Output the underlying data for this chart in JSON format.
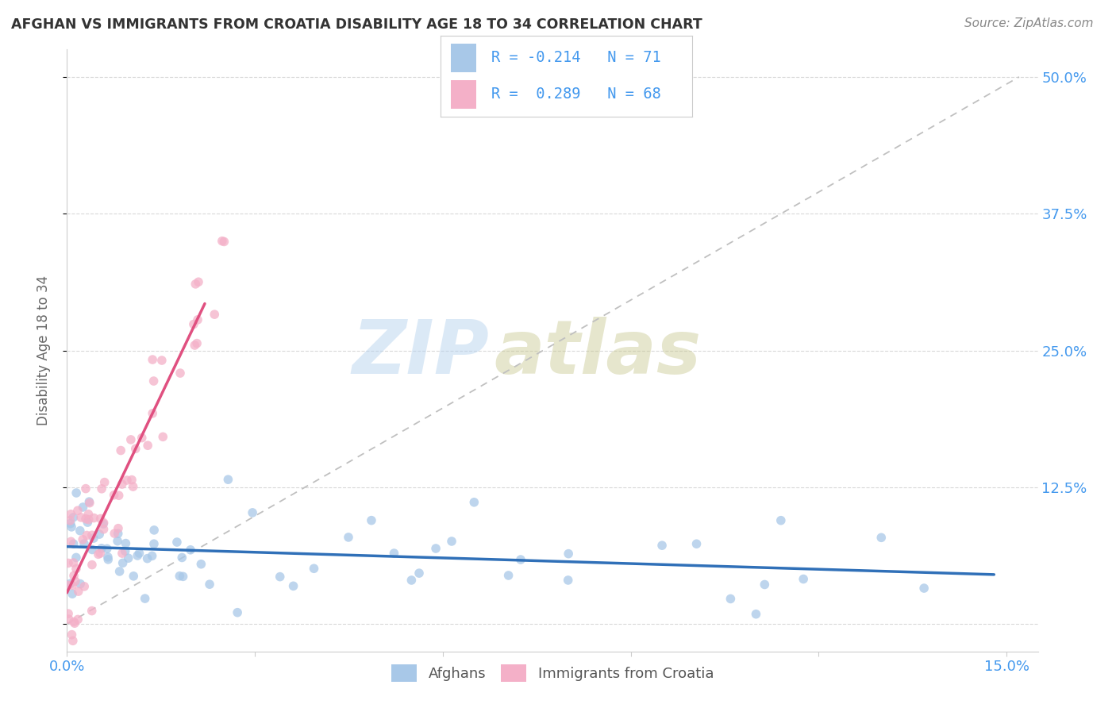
{
  "title": "AFGHAN VS IMMIGRANTS FROM CROATIA DISABILITY AGE 18 TO 34 CORRELATION CHART",
  "source": "Source: ZipAtlas.com",
  "ylabel_label": "Disability Age 18 to 34",
  "xlim": [
    0.0,
    0.155
  ],
  "ylim": [
    -0.025,
    0.525
  ],
  "xtick_positions": [
    0.0,
    0.03,
    0.06,
    0.09,
    0.12,
    0.15
  ],
  "xtick_labels": [
    "0.0%",
    "",
    "",
    "",
    "",
    "15.0%"
  ],
  "ytick_positions": [
    0.0,
    0.125,
    0.25,
    0.375,
    0.5
  ],
  "ytick_labels": [
    "",
    "12.5%",
    "25.0%",
    "37.5%",
    "50.0%"
  ],
  "grid_color": "#d8d8d8",
  "background_color": "#ffffff",
  "watermark_zip": "ZIP",
  "watermark_atlas": "atlas",
  "legend_R1": "-0.214",
  "legend_N1": "71",
  "legend_R2": "0.289",
  "legend_N2": "68",
  "blue_color": "#a8c8e8",
  "pink_color": "#f4b0c8",
  "blue_line_color": "#3070b8",
  "pink_line_color": "#e05080",
  "dashed_line_color": "#c0c0c0",
  "label_color": "#4499ee",
  "title_color": "#333333",
  "source_color": "#888888",
  "ylabel_color": "#666666"
}
